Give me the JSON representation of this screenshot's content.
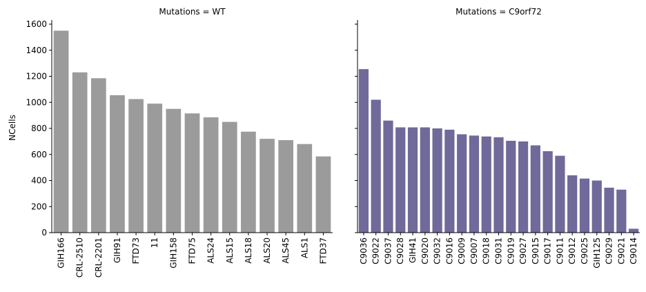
{
  "chart_data": {
    "type": "bar",
    "ylabel": "NCells",
    "ylim": [
      0,
      1600
    ],
    "yticks": [
      0,
      200,
      400,
      600,
      800,
      1000,
      1200,
      1400,
      1600
    ],
    "grid": false,
    "sharey": true,
    "panels": [
      {
        "title": "Mutations = WT",
        "color": "#9b9b9b",
        "categories": [
          "GIH166",
          "CRL-2510",
          "CRL-2201",
          "GIH91",
          "FTD73",
          "11",
          "GIH158",
          "FTD75",
          "ALS24",
          "ALS15",
          "ALS18",
          "ALS20",
          "ALS45",
          "ALS1",
          "FTD37"
        ],
        "values": [
          1550,
          1230,
          1185,
          1055,
          1025,
          990,
          950,
          915,
          885,
          850,
          775,
          720,
          710,
          680,
          585
        ]
      },
      {
        "title": "Mutations = C9orf72",
        "color": "#6f6a99",
        "categories": [
          "C9036",
          "C9022",
          "C9037",
          "C9028",
          "GIH41",
          "C9020",
          "C9032",
          "C9016",
          "C9009",
          "C9007",
          "C9018",
          "C9031",
          "C9019",
          "C9027",
          "C9015",
          "C9017",
          "C9011",
          "C9012",
          "C9025",
          "GIH125",
          "C9029",
          "C9021",
          "C9014"
        ],
        "values": [
          1255,
          1020,
          860,
          808,
          808,
          808,
          800,
          790,
          755,
          745,
          738,
          732,
          705,
          700,
          670,
          625,
          590,
          440,
          415,
          400,
          345,
          330,
          30
        ]
      }
    ]
  }
}
